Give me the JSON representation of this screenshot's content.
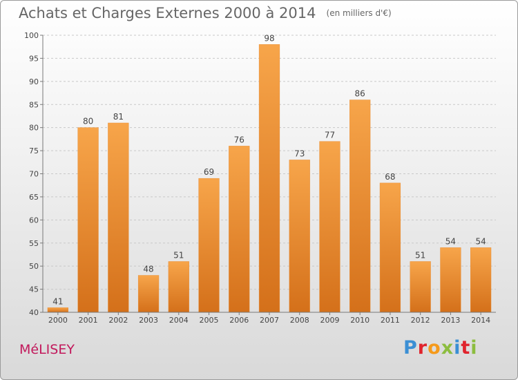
{
  "header": {
    "title": "Achats et Charges Externes 2000 à 2014",
    "subtitle": "(en milliers d'€)"
  },
  "footer": {
    "place": "MéLISEY",
    "logo": "Proxiti"
  },
  "colors": {
    "bar_light": "#f7a54a",
    "bar_dark": "#d4701a",
    "place_text": "#c2185b",
    "logo_letters": [
      "#3b8fd4",
      "#e0242d",
      "#f59a1b",
      "#8cbd3f",
      "#3b8fd4",
      "#e0242d",
      "#8cbd3f"
    ]
  },
  "chart_data": {
    "type": "bar",
    "title": "Achats et Charges Externes 2000 à 2014",
    "subtitle": "(en milliers d'€)",
    "categories": [
      "2000",
      "2001",
      "2002",
      "2003",
      "2004",
      "2005",
      "2006",
      "2007",
      "2008",
      "2009",
      "2010",
      "2011",
      "2012",
      "2013",
      "2014"
    ],
    "values": [
      41,
      80,
      81,
      48,
      51,
      69,
      76,
      98,
      73,
      77,
      86,
      68,
      51,
      54,
      54
    ],
    "ylim": [
      40,
      100
    ],
    "yticks": [
      40,
      45,
      50,
      55,
      60,
      65,
      70,
      75,
      80,
      85,
      90,
      95,
      100
    ],
    "grid": true,
    "xlabel": "",
    "ylabel": ""
  }
}
